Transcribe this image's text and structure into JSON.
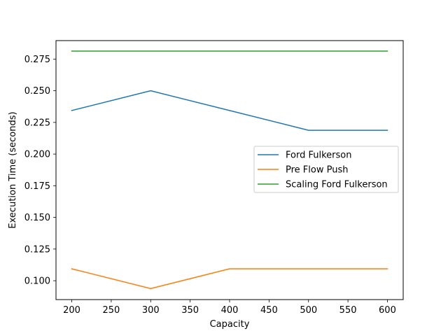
{
  "chart_data": {
    "type": "line",
    "title": "",
    "xlabel": "Capacity",
    "ylabel": "Execution Time (seconds)",
    "xlim": [
      180,
      620
    ],
    "ylim": [
      0.0851,
      0.2896
    ],
    "xticks": [
      200,
      250,
      300,
      350,
      400,
      450,
      500,
      550,
      600
    ],
    "yticks": [
      0.1,
      0.125,
      0.15,
      0.175,
      0.2,
      0.225,
      0.25,
      0.275
    ],
    "grid": false,
    "legend_position": "center-right",
    "x": [
      200,
      300,
      400,
      500,
      600
    ],
    "series": [
      {
        "name": "Ford Fulkerson",
        "color": "#1f77b4",
        "values": [
          0.2344,
          0.25,
          0.2344,
          0.2188,
          0.2188
        ]
      },
      {
        "name": "Pre Flow Push",
        "color": "#ff7f0e",
        "values": [
          0.1094,
          0.0938,
          0.1094,
          0.1094,
          0.1094
        ]
      },
      {
        "name": "Scaling Ford Fulkerson",
        "color": "#2ca02c",
        "values": [
          0.2813,
          0.2813,
          0.2813,
          0.2813,
          0.2813
        ]
      }
    ]
  }
}
